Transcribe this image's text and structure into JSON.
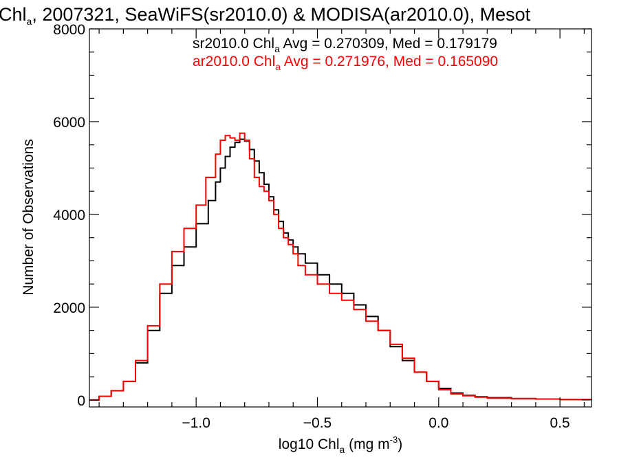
{
  "chart_data": {
    "type": "line",
    "title": {
      "prefix": "Chl",
      "sub": "a",
      "suffix": ", 2007321, SeaWiFS(sr2010.0) & MODISA(ar2010.0), Mesot"
    },
    "xlabel": {
      "prefix": "log10 Chl",
      "sub": "a",
      "unit_pre": " (mg m",
      "sup": "-3",
      "unit_post": ")"
    },
    "ylabel": "Number of Observations",
    "xlim": [
      -1.44,
      0.63
    ],
    "ylim": [
      -150,
      8000
    ],
    "x_ticks": [
      {
        "value": -1.0,
        "label": "−1.0"
      },
      {
        "value": -0.5,
        "label": "−0.5"
      },
      {
        "value": 0.0,
        "label": "0.0"
      },
      {
        "value": 0.5,
        "label": "0.5"
      }
    ],
    "y_ticks": [
      {
        "value": 0,
        "label": "0"
      },
      {
        "value": 2000,
        "label": "2000"
      },
      {
        "value": 4000,
        "label": "4000"
      },
      {
        "value": 6000,
        "label": "6000"
      },
      {
        "value": 8000,
        "label": "8000"
      }
    ],
    "legend": [
      {
        "pre": "sr2010.0 Chl",
        "sub": "a",
        "post": " Avg = 0.270309, Med = 0.179179",
        "color": "#000000"
      },
      {
        "pre": "ar2010.0 Chl",
        "sub": "a",
        "post": " Avg = 0.271976, Med = 0.165090",
        "color": "#ff0000"
      }
    ],
    "legend_position": "top-right",
    "series": [
      {
        "name": "sr2010.0",
        "color": "#000000",
        "step": true,
        "x": [
          -1.44,
          -1.4,
          -1.35,
          -1.3,
          -1.25,
          -1.2,
          -1.15,
          -1.1,
          -1.05,
          -1.0,
          -0.95,
          -0.92,
          -0.9,
          -0.88,
          -0.86,
          -0.84,
          -0.82,
          -0.8,
          -0.78,
          -0.76,
          -0.74,
          -0.72,
          -0.7,
          -0.68,
          -0.66,
          -0.64,
          -0.62,
          -0.6,
          -0.58,
          -0.55,
          -0.5,
          -0.45,
          -0.4,
          -0.35,
          -0.3,
          -0.25,
          -0.2,
          -0.15,
          -0.1,
          -0.05,
          0.0,
          0.05,
          0.1,
          0.15,
          0.2,
          0.3,
          0.4,
          0.5,
          0.63
        ],
        "y": [
          0,
          80,
          200,
          400,
          800,
          1500,
          2300,
          2900,
          3300,
          3800,
          4300,
          4700,
          5000,
          5250,
          5450,
          5550,
          5620,
          5580,
          5400,
          5150,
          4900,
          4650,
          4380,
          4100,
          3850,
          3600,
          3450,
          3300,
          3150,
          2950,
          2700,
          2500,
          2300,
          2050,
          1800,
          1500,
          1150,
          850,
          600,
          400,
          250,
          150,
          100,
          70,
          50,
          30,
          20,
          10,
          0
        ]
      },
      {
        "name": "ar2010.0",
        "color": "#ff0000",
        "step": true,
        "x": [
          -1.44,
          -1.4,
          -1.35,
          -1.3,
          -1.25,
          -1.2,
          -1.15,
          -1.1,
          -1.05,
          -1.0,
          -0.96,
          -0.92,
          -0.9,
          -0.88,
          -0.86,
          -0.84,
          -0.82,
          -0.8,
          -0.78,
          -0.76,
          -0.74,
          -0.72,
          -0.7,
          -0.68,
          -0.66,
          -0.64,
          -0.62,
          -0.6,
          -0.58,
          -0.55,
          -0.5,
          -0.45,
          -0.4,
          -0.35,
          -0.3,
          -0.25,
          -0.2,
          -0.15,
          -0.1,
          -0.05,
          0.0,
          0.05,
          0.1,
          0.15,
          0.2,
          0.3,
          0.4,
          0.5,
          0.63
        ],
        "y": [
          0,
          80,
          200,
          400,
          850,
          1600,
          2500,
          3200,
          3700,
          4200,
          4800,
          5300,
          5600,
          5700,
          5650,
          5600,
          5750,
          5600,
          5200,
          4800,
          4600,
          4500,
          4300,
          4000,
          3700,
          3500,
          3350,
          3150,
          2900,
          2700,
          2500,
          2300,
          2150,
          1950,
          1700,
          1500,
          1200,
          900,
          600,
          400,
          220,
          130,
          90,
          60,
          40,
          30,
          20,
          10,
          0
        ]
      }
    ],
    "grid": false,
    "tick_direction": "in",
    "mirror_ticks": true
  }
}
